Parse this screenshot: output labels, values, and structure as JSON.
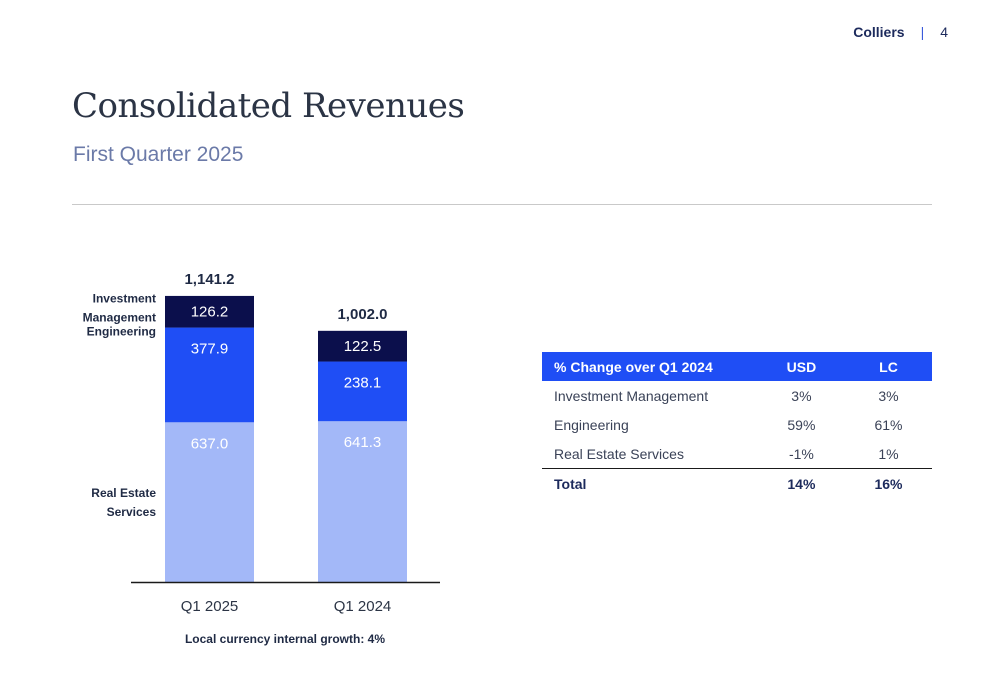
{
  "header": {
    "brand": "Colliers",
    "separator": "|",
    "page_number": "4"
  },
  "title": "Consolidated Revenues",
  "subtitle": "First Quarter 2025",
  "chart_data": {
    "type": "bar",
    "stacked": true,
    "categories": [
      "Q1 2025",
      "Q1 2024"
    ],
    "series": [
      {
        "name": "Real Estate Services",
        "label_lines": [
          "Real Estate",
          "Services"
        ],
        "values": [
          637.0,
          641.3
        ],
        "color": "#a3b8f8",
        "label_color": "#ffffff"
      },
      {
        "name": "Engineering",
        "label_lines": [
          "Engineering"
        ],
        "values": [
          377.9,
          238.1
        ],
        "color": "#1f4ef5",
        "label_color": "#ffffff"
      },
      {
        "name": "Investment Management",
        "label_lines": [
          "Investment",
          "Management"
        ],
        "values": [
          126.2,
          122.5
        ],
        "color": "#0b0f4c",
        "label_color": "#ffffff"
      }
    ],
    "value_labels": [
      [
        "637.0",
        "641.3"
      ],
      [
        "377.9",
        "238.1"
      ],
      [
        "126.2",
        "122.5"
      ]
    ],
    "totals": [
      "1,141.2",
      "1,002.0"
    ],
    "legend": "left",
    "grid": false,
    "ylim": [
      0,
      1200
    ],
    "note": "Local currency internal growth: 4%"
  },
  "table": {
    "headers": [
      "% Change over Q1 2024",
      "USD",
      "LC"
    ],
    "rows": [
      [
        "Investment Management",
        "3%",
        "3%"
      ],
      [
        "Engineering",
        "59%",
        "61%"
      ],
      [
        "Real Estate Services",
        "-1%",
        "1%"
      ]
    ],
    "total": [
      "Total",
      "14%",
      "16%"
    ]
  }
}
